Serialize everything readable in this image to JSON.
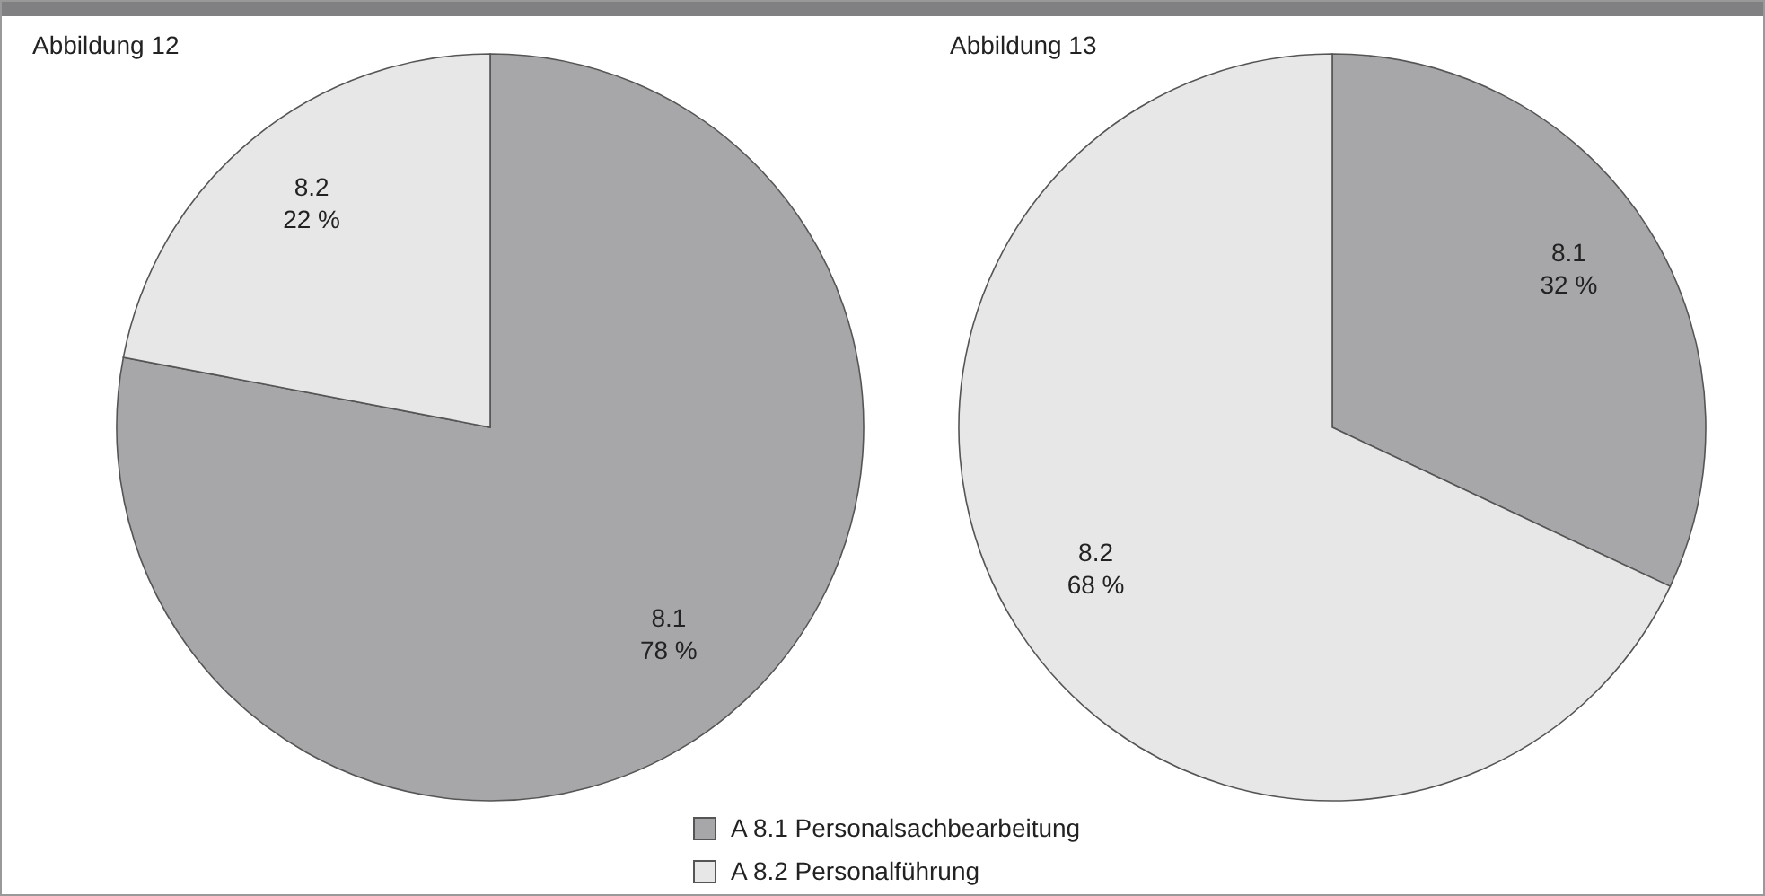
{
  "chart_data": [
    {
      "type": "pie",
      "title": "Abbildung 12",
      "categories": [
        "A 8.1 Personalsachbearbeitung",
        "A 8.2 Personalführung"
      ],
      "values": [
        78,
        22
      ],
      "colors": [
        "#a7a7a9",
        "#e7e7e8"
      ],
      "value_labels": [
        "8.1\n78 %",
        "8.2\n22 %"
      ],
      "legend": "bottom"
    },
    {
      "type": "pie",
      "title": "Abbildung 13",
      "categories": [
        null,
        null
      ],
      "values": [
        32,
        68
      ],
      "colors": [
        "#a7a7a9",
        "#e7e7e8"
      ],
      "value_labels": [
        "8.1\n32 %",
        "8.2\n68 %"
      ]
    }
  ]
}
